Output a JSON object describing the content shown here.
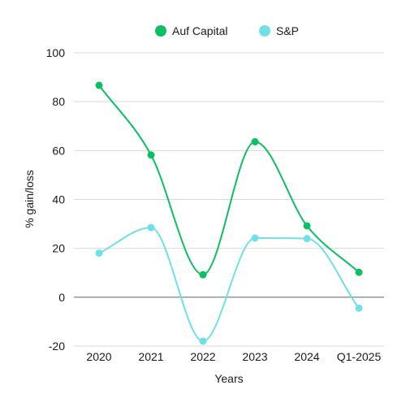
{
  "chart_data": {
    "type": "line",
    "title": "",
    "xlabel": "Years",
    "ylabel": "% gain/loss",
    "categories": [
      "2020",
      "2021",
      "2022",
      "2023",
      "2024",
      "Q1-2025"
    ],
    "ylim": [
      -20,
      100
    ],
    "yticks": [
      -20,
      0,
      20,
      40,
      60,
      80,
      100
    ],
    "grid": "horizontal",
    "legend_position": "top-center",
    "series": [
      {
        "name": "Auf Capital",
        "color": "#0bbf62",
        "values": [
          86.7,
          58.2,
          9.2,
          63.6,
          29.2,
          10.2
        ]
      },
      {
        "name": "S&P",
        "color": "#6fe0e4",
        "values": [
          18.0,
          28.5,
          -18.0,
          24.2,
          24.0,
          -4.5
        ]
      }
    ]
  }
}
